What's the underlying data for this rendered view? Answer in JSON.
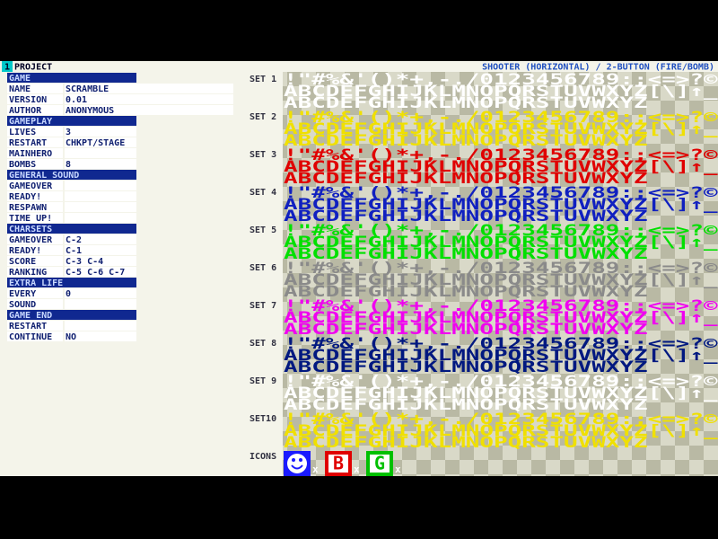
{
  "header": {
    "number": "1",
    "title": "PROJECT",
    "subtitle": "SHOOTER (HORIZONTAL) / 2-BUTTON (FIRE/BOMB)"
  },
  "sections": [
    {
      "title": "GAME",
      "rows": [
        {
          "label": "NAME",
          "value": "SCRAMBLE"
        },
        {
          "label": "VERSION",
          "value": "0.01"
        },
        {
          "label": "AUTHOR",
          "value": "ANONYMOUS"
        }
      ]
    },
    {
      "title": "GAMEPLAY",
      "rows": [
        {
          "label": "LIVES",
          "value": "3"
        },
        {
          "label": "RESTART",
          "value": "CHKPT/STAGE"
        },
        {
          "label": "MAINHERO"
        },
        {
          "label": "BOMBS",
          "value": "8"
        }
      ]
    },
    {
      "title": "GENERAL SOUND",
      "rows": [
        {
          "label": "GAMEOVER"
        },
        {
          "label": "READY!"
        },
        {
          "label": "RESPAWN"
        },
        {
          "label": "TIME UP!"
        }
      ]
    },
    {
      "title": "CHARSETS",
      "rows": [
        {
          "label": "GAMEOVER",
          "value": "C-2"
        },
        {
          "label": "READY!",
          "value": "C-1"
        },
        {
          "label": "SCORE",
          "value": "C-3 C-4"
        },
        {
          "label": "RANKING",
          "value": "C-5 C-6 C-7"
        }
      ]
    },
    {
      "title": "EXTRA LIFE",
      "rows": [
        {
          "label": "EVERY",
          "value": "0"
        },
        {
          "label": "SOUND"
        }
      ]
    },
    {
      "title": "GAME END",
      "rows": [
        {
          "label": "RESTART"
        },
        {
          "label": "CONTINUE",
          "value": "NO"
        }
      ]
    }
  ],
  "sets": [
    {
      "label": "SET 1",
      "color": "#ffffff"
    },
    {
      "label": "SET 2",
      "color": "#f0e000"
    },
    {
      "label": "SET 3",
      "color": "#e00000"
    },
    {
      "label": "SET 4",
      "color": "#1020c0"
    },
    {
      "label": "SET 5",
      "color": "#00e000"
    },
    {
      "label": "SET 6",
      "color": "#8a8a8a"
    },
    {
      "label": "SET 7",
      "color": "#f000f0"
    },
    {
      "label": "SET 8",
      "color": "#001880"
    },
    {
      "label": "SET 9",
      "color": "#ffffff"
    },
    {
      "label": "SET10",
      "color": "#f0e000"
    }
  ],
  "charset_lines": [
    "!\"#%&'()*+,-./0123456789:;<=>?©",
    "ABCDEFGHIJKLMNOPQRSTUVWXYZ[\\]↑_",
    "ABCDEFGHIJKLMNOPQRSTUVWXYZ"
  ],
  "icons": {
    "label": "ICONS",
    "items": [
      {
        "color": "#1a1aff",
        "suffix": "x"
      },
      {
        "color": "#e00000",
        "letter": "B",
        "suffix": "x"
      },
      {
        "color": "#00c000",
        "letter": "G",
        "suffix": "x"
      }
    ]
  }
}
